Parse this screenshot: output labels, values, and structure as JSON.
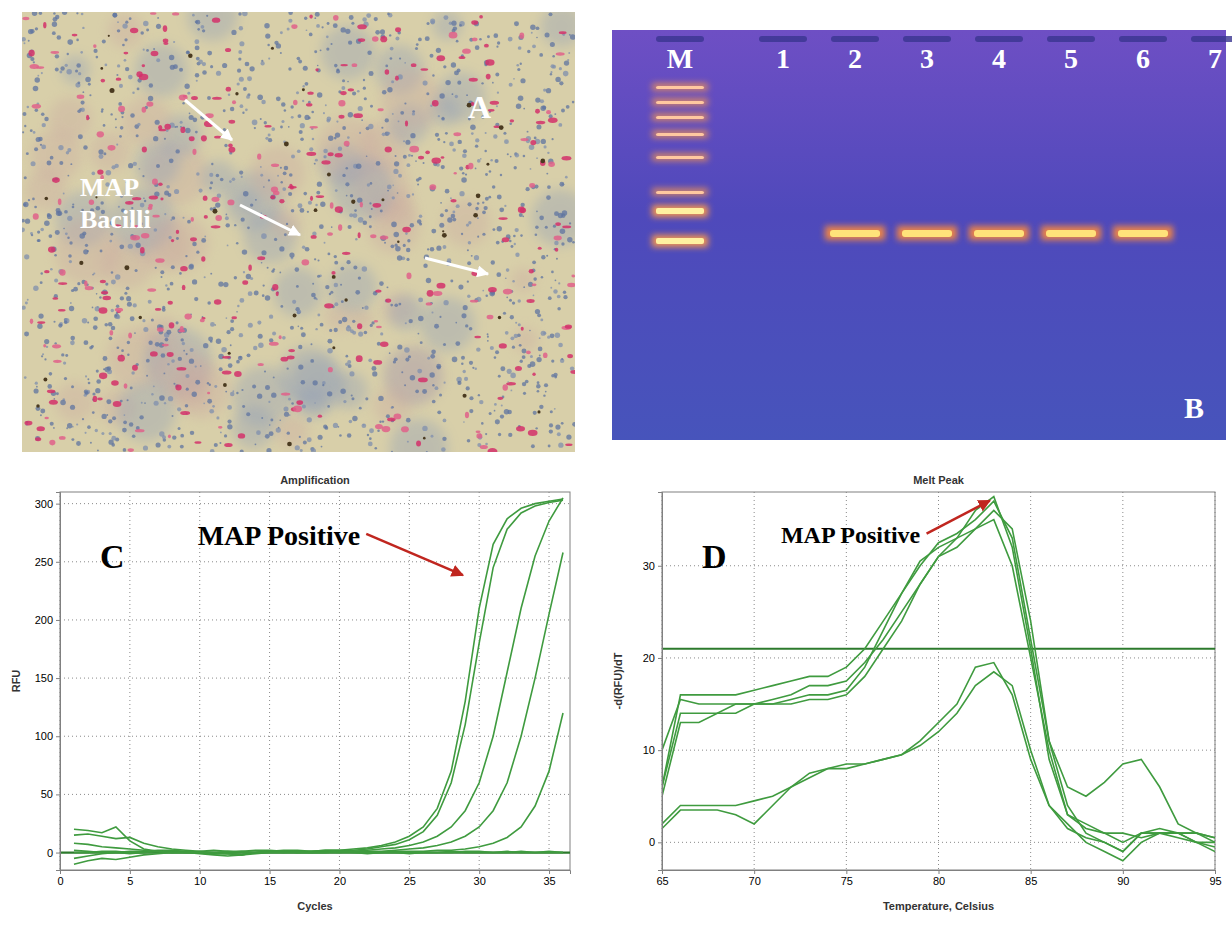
{
  "micrograph": {
    "letter": "A",
    "label": "MAP Bacilli"
  },
  "gel": {
    "letter": "B",
    "lanes": [
      "M",
      "1",
      "2",
      "3",
      "4",
      "5",
      "6",
      "7"
    ],
    "ladder_lane": "M",
    "band_lanes": [
      "2",
      "3",
      "4",
      "5",
      "6"
    ]
  },
  "chart_data": [
    {
      "type": "line",
      "title": "Amplification",
      "letter": "C",
      "x_label": "Cycles",
      "y_label": "RFU",
      "annotation": "MAP Positive",
      "x": [
        1,
        2,
        3,
        4,
        5,
        6,
        7,
        8,
        9,
        10,
        11,
        12,
        13,
        14,
        15,
        16,
        17,
        18,
        19,
        20,
        21,
        22,
        23,
        24,
        25,
        26,
        27,
        28,
        29,
        30,
        31,
        32,
        33,
        34,
        35,
        36
      ],
      "series": [
        {
          "color": "#3f9b3f",
          "values": [
            15,
            16,
            14,
            12,
            13,
            8,
            5,
            3,
            2,
            1,
            0,
            -1,
            -2,
            0,
            1,
            2,
            2,
            1,
            2,
            2,
            3,
            4,
            6,
            9,
            14,
            22,
            38,
            70,
            130,
            210,
            265,
            287,
            296,
            300,
            302,
            304
          ]
        },
        {
          "color": "#3f9b3f",
          "values": [
            -5,
            -3,
            -1,
            0,
            1,
            1,
            2,
            2,
            1,
            0,
            -1,
            0,
            1,
            2,
            2,
            1,
            1,
            1,
            2,
            2,
            2,
            3,
            5,
            7,
            11,
            18,
            32,
            60,
            110,
            180,
            245,
            278,
            292,
            298,
            301,
            303
          ]
        },
        {
          "color": "#3f9b3f",
          "values": [
            2,
            1,
            0,
            0,
            -1,
            0,
            1,
            1,
            0,
            -1,
            -2,
            -3,
            -2,
            0,
            1,
            1,
            0,
            0,
            1,
            1,
            1,
            2,
            3,
            4,
            6,
            9,
            14,
            22,
            36,
            60,
            100,
            155,
            210,
            255,
            285,
            305
          ]
        },
        {
          "color": "#3f9b3f",
          "values": [
            0,
            0,
            1,
            1,
            0,
            0,
            1,
            0,
            0,
            0,
            -1,
            -1,
            0,
            0,
            1,
            0,
            0,
            1,
            1,
            0,
            1,
            1,
            1,
            2,
            3,
            4,
            6,
            9,
            14,
            22,
            36,
            60,
            100,
            150,
            205,
            258
          ]
        },
        {
          "color": "#3f9b3f",
          "values": [
            20,
            19,
            17,
            22,
            10,
            3,
            1,
            0,
            0,
            1,
            2,
            1,
            0,
            0,
            1,
            1,
            0,
            0,
            0,
            1,
            0,
            0,
            0,
            1,
            1,
            1,
            2,
            2,
            3,
            5,
            8,
            13,
            22,
            40,
            70,
            120
          ]
        },
        {
          "color": "#3f9b3f",
          "values": [
            -10,
            -7,
            -5,
            -6,
            -4,
            -2,
            -1,
            0,
            1,
            0,
            -1,
            -1,
            -2,
            -1,
            0,
            0,
            1,
            0,
            0,
            0,
            0,
            -1,
            0,
            0,
            -1,
            0,
            0,
            1,
            0,
            0,
            0,
            1,
            0,
            0,
            1,
            0
          ]
        },
        {
          "color": "#3f9b3f",
          "values": [
            8,
            7,
            5,
            4,
            3,
            2,
            1,
            0,
            0,
            0,
            0,
            1,
            1,
            0,
            0,
            0,
            0,
            0,
            0,
            1,
            1,
            0,
            0,
            0,
            0,
            0,
            0,
            0,
            1,
            1,
            0,
            0,
            1,
            0,
            0,
            0
          ]
        }
      ],
      "threshold": 0,
      "xlim": [
        0,
        36.5
      ],
      "ylim": [
        -15,
        310
      ],
      "xticks": [
        0,
        5,
        10,
        15,
        20,
        25,
        30,
        35
      ],
      "yticks": [
        0,
        50,
        100,
        150,
        200,
        250,
        300
      ],
      "grid": true
    },
    {
      "type": "line",
      "title": "Melt Peak",
      "letter": "D",
      "x_label": "Temperature, Celsius",
      "y_label": "-d(RFU)/dT",
      "annotation": "MAP Positive",
      "x": [
        65,
        66,
        67,
        68,
        69,
        70,
        71,
        72,
        73,
        74,
        75,
        76,
        77,
        78,
        79,
        80,
        81,
        82,
        83,
        84,
        85,
        86,
        87,
        88,
        89,
        90,
        91,
        92,
        93,
        94,
        95
      ],
      "series": [
        {
          "color": "#3f9b3f",
          "values": [
            6,
            16,
            16,
            16,
            16,
            16.5,
            17,
            17.5,
            18,
            18,
            19,
            21,
            24,
            27,
            30,
            32.5,
            33.5,
            35,
            37,
            33,
            22,
            11,
            6,
            5,
            6.5,
            8.5,
            9,
            6,
            2,
            1,
            0.5
          ]
        },
        {
          "color": "#3f9b3f",
          "values": [
            10,
            15.5,
            15,
            15,
            15,
            15,
            15,
            15,
            15.5,
            15.5,
            16,
            18,
            21,
            24,
            28,
            31,
            32,
            34,
            36,
            34,
            24,
            11,
            4,
            1,
            0,
            -1,
            1,
            1,
            0.5,
            0,
            0
          ]
        },
        {
          "color": "#3f9b3f",
          "values": [
            6,
            14,
            14,
            14,
            15,
            15,
            15,
            15.5,
            16,
            16,
            16.5,
            19,
            23,
            27,
            30.5,
            32,
            33,
            34,
            35,
            30,
            20,
            10,
            3,
            1.5,
            1,
            0,
            1,
            1,
            1,
            0,
            -0.5
          ]
        },
        {
          "color": "#3f9b3f",
          "values": [
            5,
            13,
            13,
            14,
            14,
            15,
            15.5,
            16,
            17,
            17,
            17.5,
            19.5,
            22,
            25,
            28,
            31,
            33,
            36,
            37.5,
            32,
            21,
            9,
            3,
            2,
            1,
            1,
            0.5,
            1,
            1,
            0,
            -1
          ]
        },
        {
          "color": "#3f9b3f",
          "values": [
            2,
            4,
            4,
            4,
            4,
            4.5,
            5,
            6,
            7,
            8,
            8.5,
            8.5,
            9,
            9.5,
            11,
            13,
            15,
            19,
            19.5,
            16,
            9,
            4,
            2,
            0,
            -1,
            -2,
            0,
            1,
            1,
            1,
            0
          ]
        },
        {
          "color": "#3f9b3f",
          "values": [
            1.5,
            3.5,
            3.5,
            3.5,
            3,
            2,
            4,
            6,
            7.5,
            8,
            8,
            8.5,
            9,
            9.5,
            10.5,
            12,
            14,
            17,
            18.5,
            17,
            10,
            4,
            1.5,
            0.5,
            0,
            -1,
            1,
            1.5,
            1,
            1,
            0.5
          ]
        }
      ],
      "threshold": 21,
      "xlim": [
        65,
        95
      ],
      "ylim": [
        -3,
        38
      ],
      "xticks": [
        65,
        70,
        75,
        80,
        85,
        90,
        95
      ],
      "yticks": [
        0,
        10,
        20,
        30
      ],
      "grid": true
    }
  ]
}
